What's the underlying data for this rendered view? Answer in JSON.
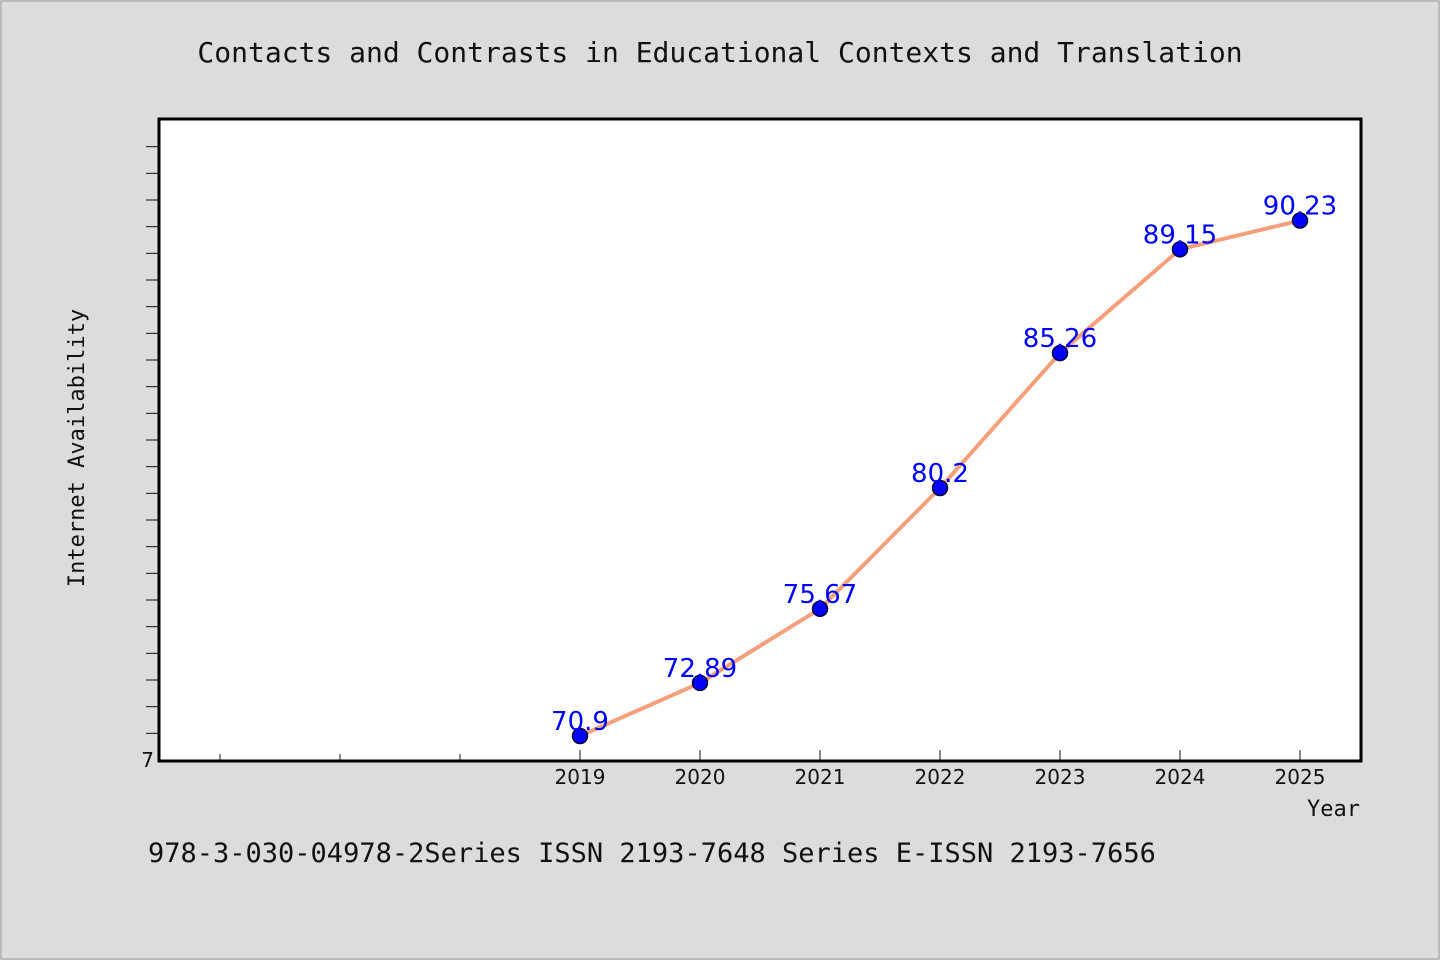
{
  "chart_data": {
    "type": "line",
    "title": "Contacts and Contrasts in Educational Contexts and Translation",
    "xlabel": "Year",
    "ylabel": "Internet Availability",
    "categories": [
      "2019",
      "2020",
      "2021",
      "2022",
      "2023",
      "2024",
      "2025"
    ],
    "series": [
      {
        "values": [
          70.9,
          72.89,
          75.67,
          80.2,
          85.26,
          89.15,
          90.23
        ]
      }
    ],
    "data_labels": [
      "70.9",
      "72.89",
      "75.67",
      "80.2",
      "85.26",
      "89.15",
      "90.23"
    ],
    "y_tick_labels": [
      "7"
    ],
    "ylim": [
      70,
      94
    ],
    "grid": false,
    "line_color": "#f4a07c",
    "marker_color": "#0000ff"
  },
  "footer": {
    "text": "978-3-030-04978-2Series ISSN 2193-7648 Series E-ISSN 2193-7656"
  }
}
